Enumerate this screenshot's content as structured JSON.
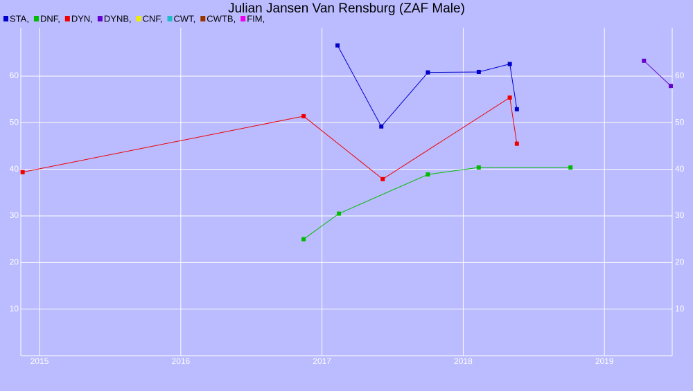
{
  "chart_data": {
    "type": "line",
    "title": "Julian Jansen Van Rensburg (ZAF Male)",
    "series": [
      {
        "name": "STA,",
        "color": "#0000cc",
        "x": [
          2017.11,
          2017.42,
          2017.75,
          2018.11,
          2018.33,
          2018.38
        ],
        "values": [
          66.6,
          49.2,
          60.8,
          60.9,
          62.6,
          52.9
        ]
      },
      {
        "name": "DNF,",
        "color": "#00bb00",
        "x": [
          2016.87,
          2017.12,
          2017.75,
          2018.11,
          2018.76
        ],
        "values": [
          25.0,
          30.5,
          38.9,
          40.4,
          40.4
        ]
      },
      {
        "name": "DYN,",
        "color": "#ee0000",
        "x": [
          2014.88,
          2016.87,
          2017.43,
          2018.33,
          2018.38
        ],
        "values": [
          39.4,
          51.4,
          37.9,
          55.4,
          45.5
        ]
      },
      {
        "name": "DYNB,",
        "color": "#6600cc",
        "x": [
          2019.28,
          2019.47
        ],
        "values": [
          63.3,
          57.9
        ]
      },
      {
        "name": "CNF,",
        "color": "#eeee00",
        "x": [],
        "values": []
      },
      {
        "name": "CWT,",
        "color": "#22bbcc",
        "x": [],
        "values": []
      },
      {
        "name": "CWTB,",
        "color": "#993300",
        "x": [],
        "values": []
      },
      {
        "name": "FIM,",
        "color": "#ee00ee",
        "x": [],
        "values": []
      }
    ],
    "xlim": [
      2014.867,
      2019.48
    ],
    "xticks": [
      2015,
      2016,
      2017,
      2018,
      2019
    ],
    "ylim": [
      0,
      70.4
    ],
    "yticks": [
      10,
      20,
      30,
      40,
      50,
      60
    ],
    "grid": true
  }
}
